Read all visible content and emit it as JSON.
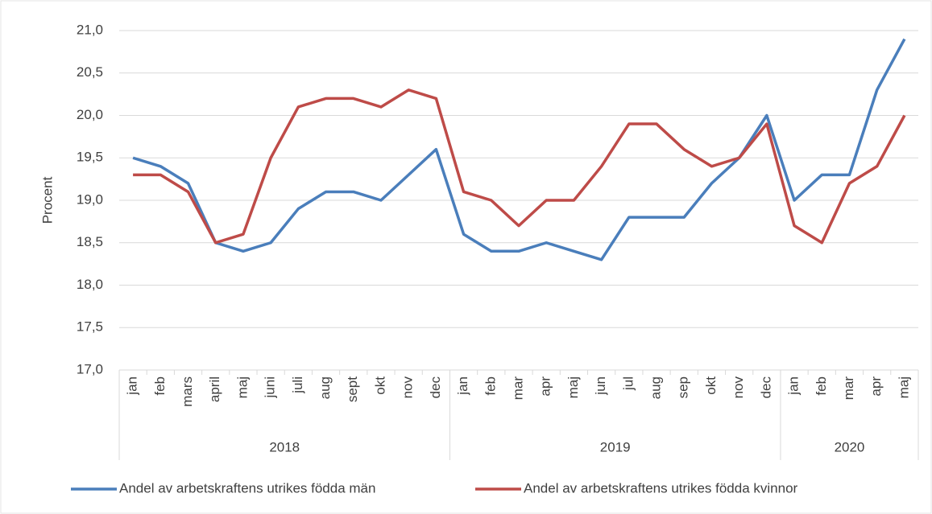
{
  "chart_data": {
    "type": "line",
    "ylabel": "Procent",
    "categories": [
      "jan",
      "feb",
      "mars",
      "april",
      "maj",
      "juni",
      "juli",
      "aug",
      "sept",
      "okt",
      "nov",
      "dec",
      "jan",
      "feb",
      "mar",
      "apr",
      "maj",
      "jun",
      "jul",
      "aug",
      "sep",
      "okt",
      "nov",
      "dec",
      "jan",
      "feb",
      "mar",
      "apr",
      "maj"
    ],
    "x_groups": [
      {
        "label": "2018",
        "size": 12
      },
      {
        "label": "2019",
        "size": 12
      },
      {
        "label": "2020",
        "size": 5
      }
    ],
    "series": [
      {
        "name": "Andel av arbetskraftens utrikes födda män",
        "color": "#4a7ebb",
        "values": [
          19.5,
          19.4,
          19.2,
          18.5,
          18.4,
          18.5,
          18.9,
          19.1,
          19.1,
          19.0,
          19.3,
          19.6,
          18.6,
          18.4,
          18.4,
          18.5,
          18.4,
          18.3,
          18.8,
          18.8,
          18.8,
          19.2,
          19.5,
          20.0,
          19.0,
          19.3,
          19.3,
          20.3,
          20.9
        ]
      },
      {
        "name": "Andel av arbetskraftens utrikes födda kvinnor",
        "color": "#be4b48",
        "values": [
          19.3,
          19.3,
          19.1,
          18.5,
          18.6,
          19.5,
          20.1,
          20.2,
          20.2,
          20.1,
          20.3,
          20.2,
          19.1,
          19.0,
          18.7,
          19.0,
          19.0,
          19.4,
          19.9,
          19.9,
          19.6,
          19.4,
          19.5,
          19.9,
          18.7,
          18.5,
          19.2,
          19.4,
          20.0
        ]
      }
    ],
    "ylim": [
      17,
      21
    ],
    "yticks": [
      {
        "value": 17,
        "label": "17,0"
      },
      {
        "value": 17.5,
        "label": "17,5"
      },
      {
        "value": 18,
        "label": "18,0"
      },
      {
        "value": 18.5,
        "label": "18,5"
      },
      {
        "value": 19,
        "label": "19,0"
      },
      {
        "value": 19.5,
        "label": "19,5"
      },
      {
        "value": 20,
        "label": "20,0"
      },
      {
        "value": 20.5,
        "label": "20,5"
      },
      {
        "value": 21,
        "label": "21,0"
      }
    ],
    "grid": true,
    "legend": "bottom"
  }
}
